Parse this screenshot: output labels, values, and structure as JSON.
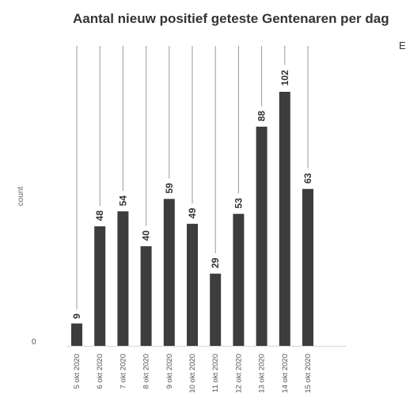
{
  "chart_data": {
    "type": "bar",
    "title": "Aantal nieuw positief geteste Gentenaren per dag",
    "xlabel": "",
    "ylabel": "count",
    "y_tick_labels": [
      "0"
    ],
    "ylim": [
      0,
      106
    ],
    "grid": false,
    "categories": [
      "5 okt 2020",
      "6 okt 2020",
      "7 okt 2020",
      "8 okt 2020",
      "9 okt 2020",
      "10 okt 2020",
      "11 okt 2020",
      "12 okt 2020",
      "13 okt 2020",
      "14 okt 2020",
      "15 okt 2020"
    ],
    "values": [
      9,
      48,
      54,
      40,
      59,
      49,
      29,
      53,
      88,
      102,
      63
    ],
    "bar_color": "#3d3d3d",
    "leader_line_color": "#9a9a9a"
  },
  "edge_text": "E"
}
